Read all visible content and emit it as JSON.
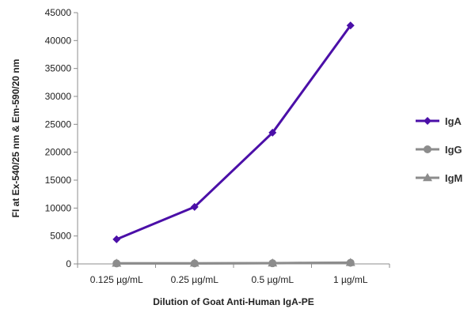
{
  "chart_data": {
    "type": "line",
    "title": "",
    "xlabel": "Dilution of Goat Anti-Human IgA-PE",
    "ylabel": "FI at Ex-540/25 nm & Em-590/20 nm",
    "categories": [
      "0.125 µg/mL",
      "0.25 µg/mL",
      "0.5 µg/mL",
      "1 µg/mL"
    ],
    "ylim": [
      0,
      45000
    ],
    "yticks": [
      0,
      5000,
      10000,
      15000,
      20000,
      25000,
      30000,
      35000,
      40000,
      45000
    ],
    "grid": false,
    "legend_position": "right",
    "series": [
      {
        "name": "IgA",
        "color": "#4b0fa8",
        "marker": "diamond",
        "values": [
          4400,
          10200,
          23500,
          42700
        ]
      },
      {
        "name": "IgG",
        "color": "#8c8c8c",
        "marker": "circle",
        "values": [
          80,
          90,
          120,
          200
        ]
      },
      {
        "name": "IgM",
        "color": "#8c8c8c",
        "marker": "triangle",
        "values": [
          100,
          110,
          140,
          230
        ]
      }
    ]
  }
}
